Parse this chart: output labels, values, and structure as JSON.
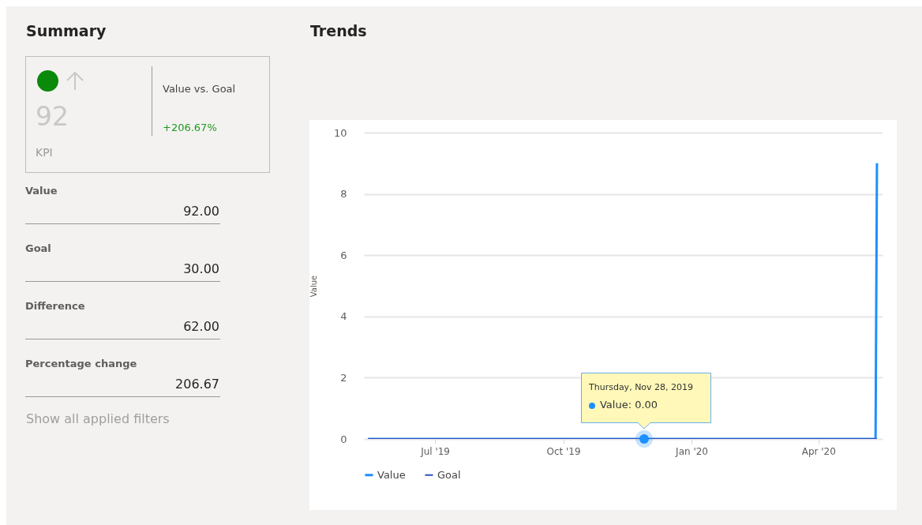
{
  "chart_data": [
    {
      "type": "other",
      "title": "Summary",
      "annotations": [
        "92",
        "KPI",
        "Value vs. Goal",
        "+206.67%",
        "Value",
        "92.00",
        "Goal",
        "30.00",
        "Difference",
        "62.00",
        "Percentage change",
        "206.67",
        "Show all applied filters"
      ]
    },
    {
      "type": "line",
      "title": "Trends",
      "ylabel": "Value",
      "xlim": [
        "2019-05-11",
        "2020-05-17"
      ],
      "ylim": [
        0,
        10
      ],
      "yticks": [
        0,
        2,
        4,
        6,
        8,
        10
      ],
      "xticks": [
        {
          "value": "2019-07-01",
          "label": "Jul '19"
        },
        {
          "value": "2019-10-01",
          "label": "Oct '19"
        },
        {
          "value": "2020-01-01",
          "label": "Jan '20"
        },
        {
          "value": "2020-04-01",
          "label": "Apr '20"
        }
      ],
      "grid": "y",
      "legend": "bottom",
      "marker": "none",
      "series": [
        {
          "name": "Value",
          "color": "#1e8fff",
          "x": [
            "2019-05-14",
            "2019-11-28",
            "2020-05-12",
            "2020-05-13"
          ],
          "values": [
            0,
            0,
            0,
            9
          ]
        },
        {
          "name": "Goal",
          "color": "#2e4fc0",
          "x": [
            "2019-05-14",
            "2020-05-13"
          ],
          "values": [
            0,
            0
          ]
        }
      ],
      "annotations": [
        "Thursday, Nov 28, 2019",
        {
          "text": "Value: 0.00",
          "x": "2019-11-28",
          "y": 0
        }
      ]
    }
  ]
}
